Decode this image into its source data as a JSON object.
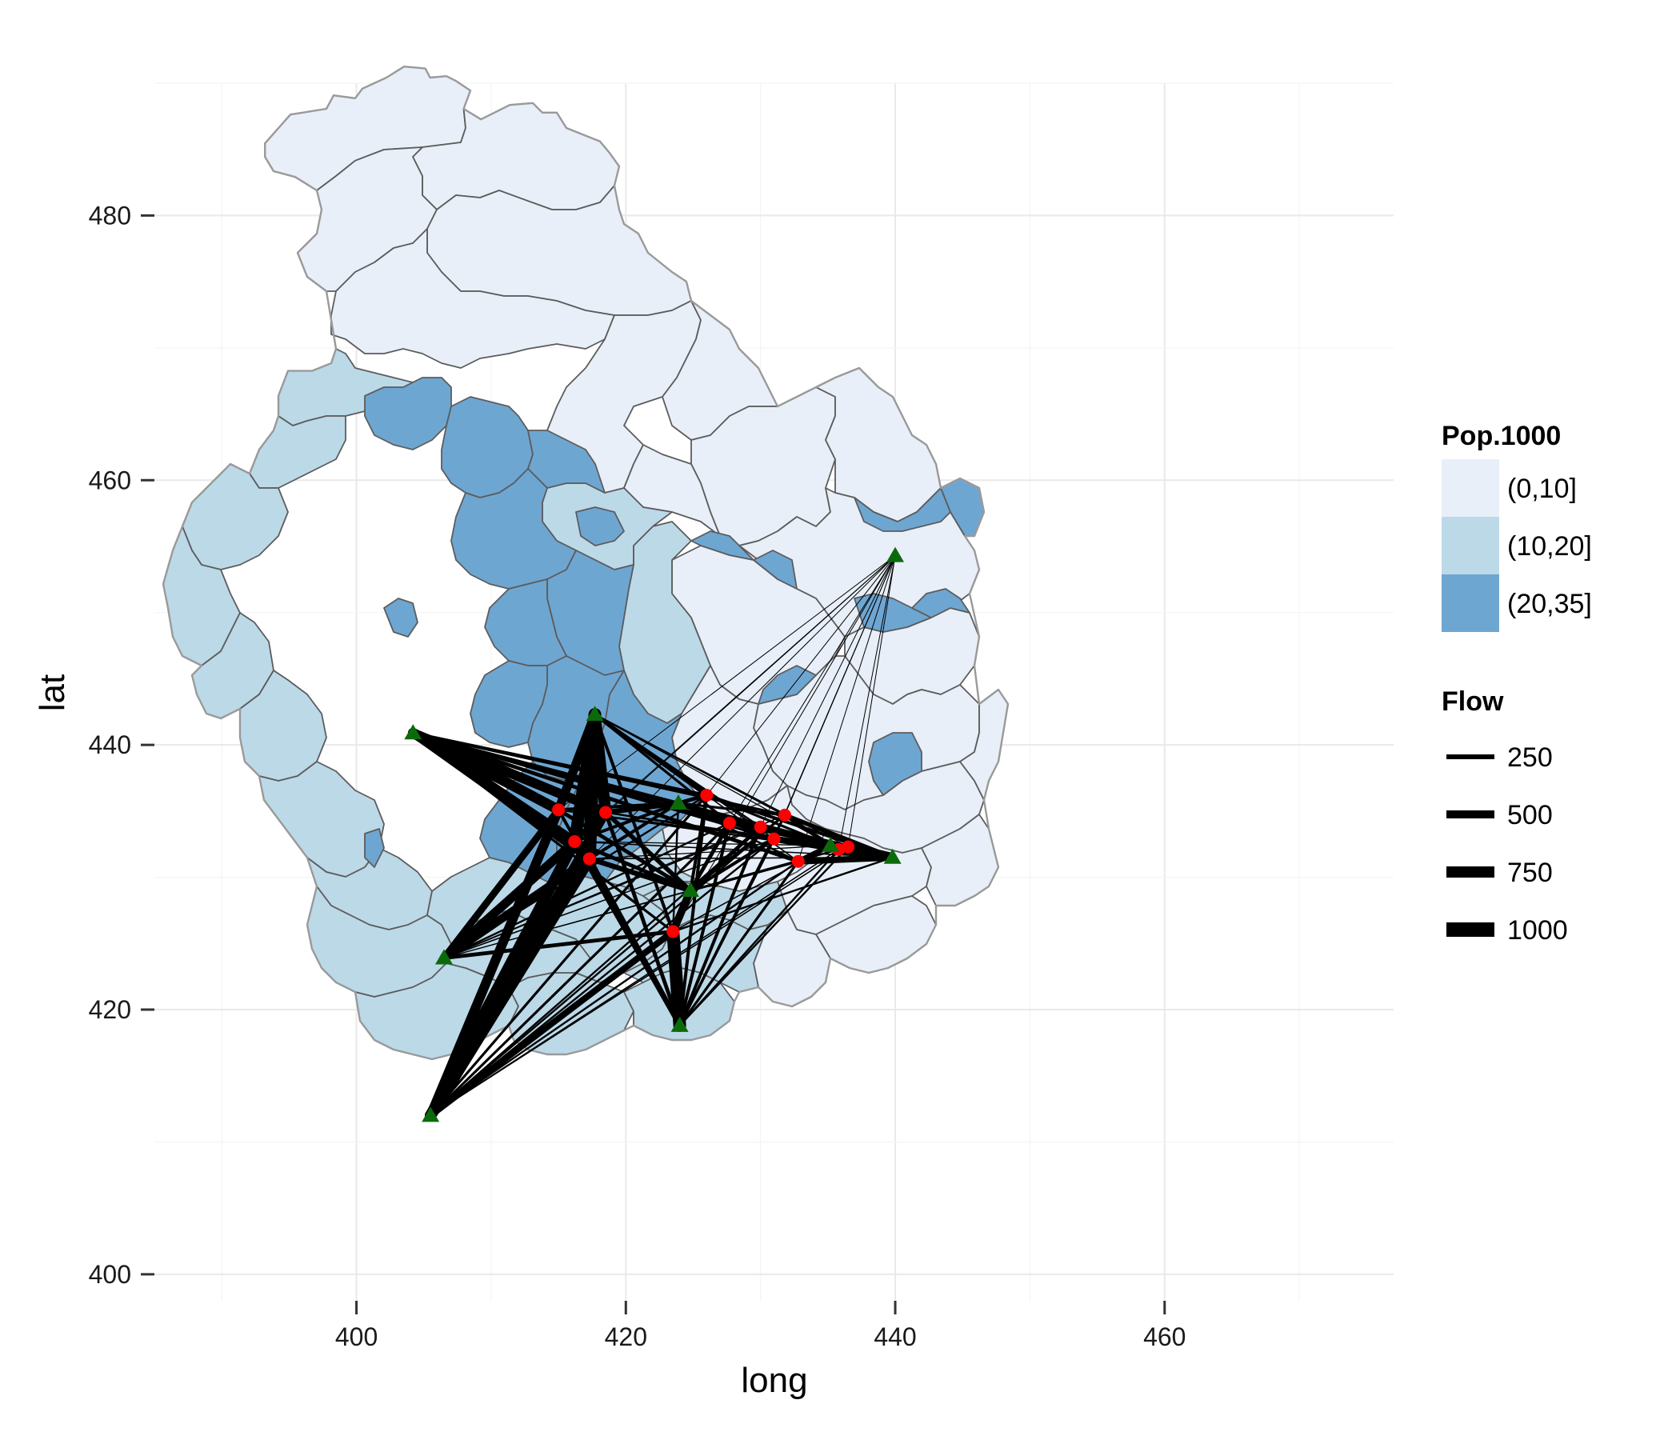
{
  "chart_data": {
    "type": "map",
    "xlabel": "long",
    "ylabel": "lat",
    "xlim": [
      385,
      477
    ],
    "ylim": [
      398,
      490
    ],
    "x_ticks": [
      400,
      420,
      440,
      460
    ],
    "y_ticks": [
      400,
      420,
      440,
      460,
      480
    ],
    "x_tick_labels": [
      "400",
      "420",
      "440",
      "460"
    ],
    "y_tick_labels": [
      "400",
      "420",
      "440",
      "460",
      "480"
    ],
    "grid": true,
    "fill_legend": {
      "title": "Pop.1000",
      "entries": [
        {
          "label": "(0,10]",
          "color": "#e8eff8"
        },
        {
          "label": "(10,20]",
          "color": "#bcd9e8"
        },
        {
          "label": "(20,35]",
          "color": "#6ea6d2"
        }
      ]
    },
    "size_legend": {
      "title": "Flow",
      "entries": [
        {
          "label": "250",
          "value": 250
        },
        {
          "label": "500",
          "value": 500
        },
        {
          "label": "750",
          "value": 750
        },
        {
          "label": "1000",
          "value": 1000
        }
      ]
    },
    "colors": {
      "origin_marker": "#0b6b0b",
      "destination_marker": "#ff0000",
      "flow": "#000000"
    },
    "origins": [
      {
        "id": "o1",
        "long": 440.0,
        "lat": 454.3
      },
      {
        "id": "o2",
        "long": 417.7,
        "lat": 442.3
      },
      {
        "id": "o3",
        "long": 404.2,
        "lat": 440.9
      },
      {
        "id": "o4",
        "long": 423.9,
        "lat": 435.6
      },
      {
        "id": "o5",
        "long": 435.2,
        "lat": 432.4
      },
      {
        "id": "o6",
        "long": 439.8,
        "lat": 431.5
      },
      {
        "id": "o7",
        "long": 424.8,
        "lat": 429.0
      },
      {
        "id": "o8",
        "long": 406.5,
        "lat": 423.9
      },
      {
        "id": "o9",
        "long": 424.0,
        "lat": 418.8
      },
      {
        "id": "o10",
        "long": 405.5,
        "lat": 412.0
      }
    ],
    "destinations": [
      {
        "id": "d1",
        "long": 426.0,
        "lat": 436.2
      },
      {
        "id": "d2",
        "long": 415.0,
        "lat": 435.1
      },
      {
        "id": "d3",
        "long": 418.5,
        "lat": 434.9
      },
      {
        "id": "d4",
        "long": 431.8,
        "lat": 434.7
      },
      {
        "id": "d5",
        "long": 427.7,
        "lat": 434.1
      },
      {
        "id": "d6",
        "long": 430.0,
        "lat": 433.8
      },
      {
        "id": "d7",
        "long": 431.0,
        "lat": 432.9
      },
      {
        "id": "d8",
        "long": 416.2,
        "lat": 432.7
      },
      {
        "id": "d9",
        "long": 436.5,
        "lat": 432.3
      },
      {
        "id": "d10",
        "long": 435.8,
        "lat": 432.1
      },
      {
        "id": "d11",
        "long": 417.3,
        "lat": 431.4
      },
      {
        "id": "d12",
        "long": 432.8,
        "lat": 431.2
      },
      {
        "id": "d13",
        "long": 423.5,
        "lat": 425.9
      }
    ],
    "flows": [
      {
        "from": "o1",
        "to": "d1",
        "value": 40
      },
      {
        "from": "o1",
        "to": "d2",
        "value": 40
      },
      {
        "from": "o1",
        "to": "d3",
        "value": 40
      },
      {
        "from": "o1",
        "to": "d4",
        "value": 40
      },
      {
        "from": "o1",
        "to": "d5",
        "value": 40
      },
      {
        "from": "o1",
        "to": "d6",
        "value": 40
      },
      {
        "from": "o1",
        "to": "d7",
        "value": 40
      },
      {
        "from": "o1",
        "to": "d8",
        "value": 40
      },
      {
        "from": "o1",
        "to": "d9",
        "value": 40
      },
      {
        "from": "o1",
        "to": "d10",
        "value": 40
      },
      {
        "from": "o1",
        "to": "d11",
        "value": 40
      },
      {
        "from": "o1",
        "to": "d12",
        "value": 40
      },
      {
        "from": "o1",
        "to": "d13",
        "value": 40
      },
      {
        "from": "o2",
        "to": "d1",
        "value": 300
      },
      {
        "from": "o2",
        "to": "d2",
        "value": 700
      },
      {
        "from": "o2",
        "to": "d3",
        "value": 900
      },
      {
        "from": "o2",
        "to": "d4",
        "value": 150
      },
      {
        "from": "o2",
        "to": "d5",
        "value": 200
      },
      {
        "from": "o2",
        "to": "d6",
        "value": 150
      },
      {
        "from": "o2",
        "to": "d7",
        "value": 120
      },
      {
        "from": "o2",
        "to": "d8",
        "value": 950
      },
      {
        "from": "o2",
        "to": "d9",
        "value": 80
      },
      {
        "from": "o2",
        "to": "d10",
        "value": 80
      },
      {
        "from": "o2",
        "to": "d11",
        "value": 1000
      },
      {
        "from": "o2",
        "to": "d12",
        "value": 100
      },
      {
        "from": "o2",
        "to": "d13",
        "value": 250
      },
      {
        "from": "o3",
        "to": "d1",
        "value": 250
      },
      {
        "from": "o3",
        "to": "d2",
        "value": 800
      },
      {
        "from": "o3",
        "to": "d3",
        "value": 750
      },
      {
        "from": "o3",
        "to": "d4",
        "value": 200
      },
      {
        "from": "o3",
        "to": "d5",
        "value": 250
      },
      {
        "from": "o3",
        "to": "d6",
        "value": 200
      },
      {
        "from": "o3",
        "to": "d7",
        "value": 200
      },
      {
        "from": "o3",
        "to": "d8",
        "value": 700
      },
      {
        "from": "o3",
        "to": "d9",
        "value": 150
      },
      {
        "from": "o3",
        "to": "d10",
        "value": 150
      },
      {
        "from": "o3",
        "to": "d11",
        "value": 650
      },
      {
        "from": "o3",
        "to": "d12",
        "value": 300
      },
      {
        "from": "o3",
        "to": "d13",
        "value": 200
      },
      {
        "from": "o4",
        "to": "d1",
        "value": 300
      },
      {
        "from": "o4",
        "to": "d2",
        "value": 250
      },
      {
        "from": "o4",
        "to": "d3",
        "value": 400
      },
      {
        "from": "o4",
        "to": "d4",
        "value": 200
      },
      {
        "from": "o4",
        "to": "d5",
        "value": 300
      },
      {
        "from": "o4",
        "to": "d6",
        "value": 250
      },
      {
        "from": "o4",
        "to": "d7",
        "value": 200
      },
      {
        "from": "o4",
        "to": "d8",
        "value": 250
      },
      {
        "from": "o4",
        "to": "d9",
        "value": 100
      },
      {
        "from": "o4",
        "to": "d10",
        "value": 100
      },
      {
        "from": "o4",
        "to": "d11",
        "value": 250
      },
      {
        "from": "o4",
        "to": "d12",
        "value": 150
      },
      {
        "from": "o4",
        "to": "d13",
        "value": 150
      },
      {
        "from": "o5",
        "to": "d1",
        "value": 200
      },
      {
        "from": "o5",
        "to": "d2",
        "value": 100
      },
      {
        "from": "o5",
        "to": "d3",
        "value": 120
      },
      {
        "from": "o5",
        "to": "d4",
        "value": 300
      },
      {
        "from": "o5",
        "to": "d5",
        "value": 250
      },
      {
        "from": "o5",
        "to": "d6",
        "value": 350
      },
      {
        "from": "o5",
        "to": "d7",
        "value": 400
      },
      {
        "from": "o5",
        "to": "d8",
        "value": 80
      },
      {
        "from": "o5",
        "to": "d9",
        "value": 500
      },
      {
        "from": "o5",
        "to": "d10",
        "value": 600
      },
      {
        "from": "o5",
        "to": "d11",
        "value": 80
      },
      {
        "from": "o5",
        "to": "d12",
        "value": 400
      },
      {
        "from": "o5",
        "to": "d13",
        "value": 100
      },
      {
        "from": "o6",
        "to": "d1",
        "value": 250
      },
      {
        "from": "o6",
        "to": "d2",
        "value": 150
      },
      {
        "from": "o6",
        "to": "d3",
        "value": 150
      },
      {
        "from": "o6",
        "to": "d4",
        "value": 350
      },
      {
        "from": "o6",
        "to": "d5",
        "value": 300
      },
      {
        "from": "o6",
        "to": "d6",
        "value": 450
      },
      {
        "from": "o6",
        "to": "d7",
        "value": 500
      },
      {
        "from": "o6",
        "to": "d8",
        "value": 100
      },
      {
        "from": "o6",
        "to": "d9",
        "value": 700
      },
      {
        "from": "o6",
        "to": "d10",
        "value": 650
      },
      {
        "from": "o6",
        "to": "d11",
        "value": 100
      },
      {
        "from": "o6",
        "to": "d12",
        "value": 500
      },
      {
        "from": "o6",
        "to": "d13",
        "value": 150
      },
      {
        "from": "o7",
        "to": "d1",
        "value": 250
      },
      {
        "from": "o7",
        "to": "d2",
        "value": 300
      },
      {
        "from": "o7",
        "to": "d3",
        "value": 350
      },
      {
        "from": "o7",
        "to": "d4",
        "value": 200
      },
      {
        "from": "o7",
        "to": "d5",
        "value": 300
      },
      {
        "from": "o7",
        "to": "d6",
        "value": 300
      },
      {
        "from": "o7",
        "to": "d7",
        "value": 250
      },
      {
        "from": "o7",
        "to": "d8",
        "value": 300
      },
      {
        "from": "o7",
        "to": "d9",
        "value": 150
      },
      {
        "from": "o7",
        "to": "d10",
        "value": 150
      },
      {
        "from": "o7",
        "to": "d11",
        "value": 400
      },
      {
        "from": "o7",
        "to": "d12",
        "value": 200
      },
      {
        "from": "o7",
        "to": "d13",
        "value": 600
      },
      {
        "from": "o8",
        "to": "d1",
        "value": 150
      },
      {
        "from": "o8",
        "to": "d2",
        "value": 550
      },
      {
        "from": "o8",
        "to": "d3",
        "value": 450
      },
      {
        "from": "o8",
        "to": "d4",
        "value": 100
      },
      {
        "from": "o8",
        "to": "d5",
        "value": 150
      },
      {
        "from": "o8",
        "to": "d6",
        "value": 100
      },
      {
        "from": "o8",
        "to": "d7",
        "value": 100
      },
      {
        "from": "o8",
        "to": "d8",
        "value": 700
      },
      {
        "from": "o8",
        "to": "d9",
        "value": 60
      },
      {
        "from": "o8",
        "to": "d10",
        "value": 60
      },
      {
        "from": "o8",
        "to": "d11",
        "value": 650
      },
      {
        "from": "o8",
        "to": "d12",
        "value": 80
      },
      {
        "from": "o8",
        "to": "d13",
        "value": 300
      },
      {
        "from": "o9",
        "to": "d1",
        "value": 250
      },
      {
        "from": "o9",
        "to": "d2",
        "value": 250
      },
      {
        "from": "o9",
        "to": "d3",
        "value": 300
      },
      {
        "from": "o9",
        "to": "d4",
        "value": 200
      },
      {
        "from": "o9",
        "to": "d5",
        "value": 250
      },
      {
        "from": "o9",
        "to": "d6",
        "value": 250
      },
      {
        "from": "o9",
        "to": "d7",
        "value": 200
      },
      {
        "from": "o9",
        "to": "d8",
        "value": 350
      },
      {
        "from": "o9",
        "to": "d9",
        "value": 150
      },
      {
        "from": "o9",
        "to": "d10",
        "value": 150
      },
      {
        "from": "o9",
        "to": "d11",
        "value": 400
      },
      {
        "from": "o9",
        "to": "d12",
        "value": 200
      },
      {
        "from": "o9",
        "to": "d13",
        "value": 1000
      },
      {
        "from": "o10",
        "to": "d1",
        "value": 200
      },
      {
        "from": "o10",
        "to": "d2",
        "value": 750
      },
      {
        "from": "o10",
        "to": "d3",
        "value": 700
      },
      {
        "from": "o10",
        "to": "d4",
        "value": 150
      },
      {
        "from": "o10",
        "to": "d5",
        "value": 200
      },
      {
        "from": "o10",
        "to": "d6",
        "value": 150
      },
      {
        "from": "o10",
        "to": "d7",
        "value": 150
      },
      {
        "from": "o10",
        "to": "d8",
        "value": 850
      },
      {
        "from": "o10",
        "to": "d9",
        "value": 100
      },
      {
        "from": "o10",
        "to": "d10",
        "value": 100
      },
      {
        "from": "o10",
        "to": "d11",
        "value": 900
      },
      {
        "from": "o10",
        "to": "d12",
        "value": 150
      },
      {
        "from": "o10",
        "to": "d13",
        "value": 500
      }
    ]
  }
}
